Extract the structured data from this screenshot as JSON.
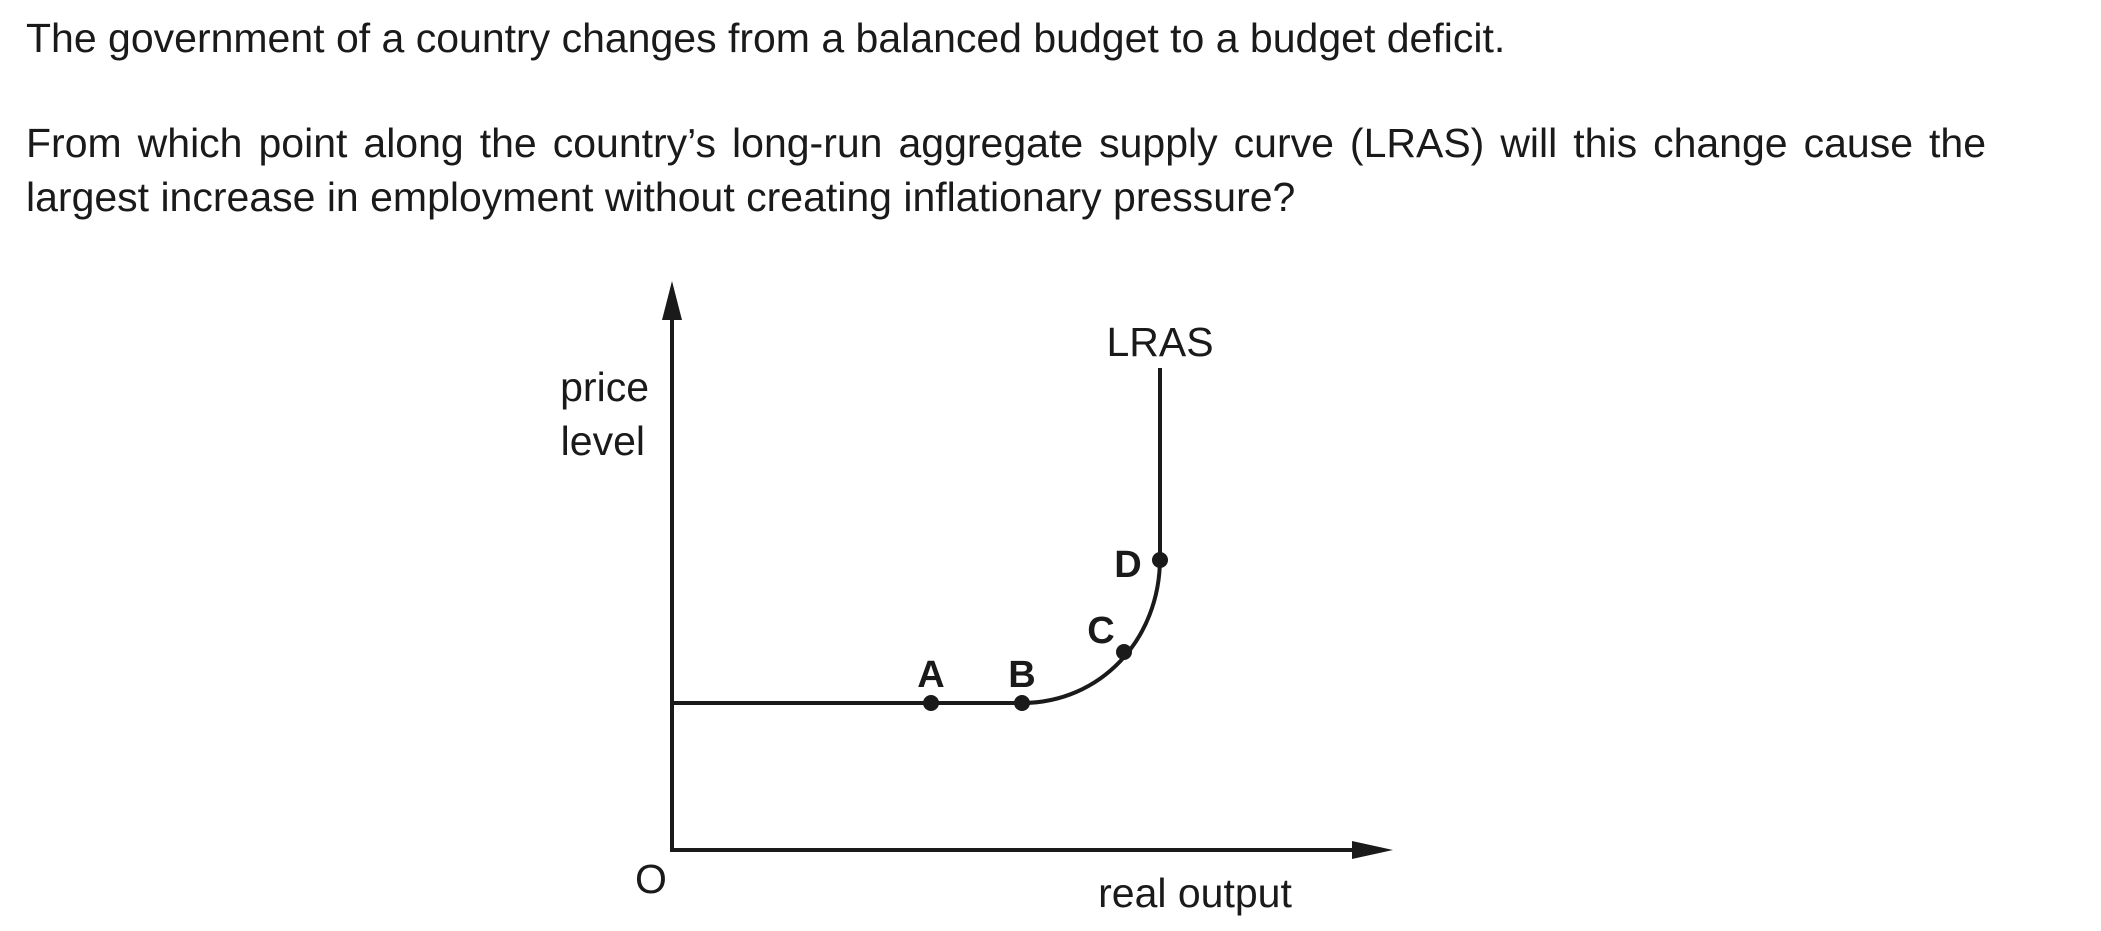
{
  "question": {
    "line1": "The government of a country changes from a balanced budget to a budget deficit.",
    "line2": "From which point along the country’s long-run aggregate supply curve (LRAS) will this change cause the largest increase in employment without creating inflationary pressure?"
  },
  "diagram": {
    "y_axis_label_line1": "price",
    "y_axis_label_line2": "level",
    "x_axis_label": "real output",
    "origin_label": "O",
    "curve_label": "LRAS",
    "points": [
      {
        "label": "A"
      },
      {
        "label": "B"
      },
      {
        "label": "C"
      },
      {
        "label": "D"
      }
    ],
    "line_color": "#1a1a1a"
  }
}
